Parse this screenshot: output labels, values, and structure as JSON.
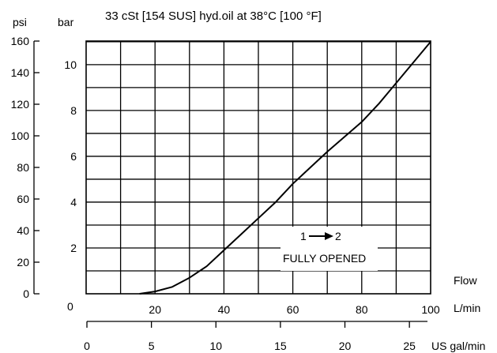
{
  "chart_data": {
    "type": "line",
    "title": "33 cSt [154 SUS] hyd.oil at 38°C [100 °F]",
    "left_axes": {
      "psi": {
        "label": "psi",
        "range": [
          0,
          160
        ],
        "ticks": [
          0,
          20,
          40,
          60,
          80,
          100,
          120,
          140,
          160
        ]
      },
      "bar": {
        "label": "bar",
        "range": [
          0,
          11.03
        ],
        "ticks": [
          2,
          4,
          6,
          8,
          10
        ]
      }
    },
    "x_axes": {
      "lpm": {
        "label_line1": "Flow",
        "label_line2": "L/min",
        "range": [
          0,
          100
        ],
        "ticks": [
          0,
          20,
          40,
          60,
          80,
          100
        ],
        "first_tick_label": "0"
      },
      "gpm": {
        "label": "US gal/min",
        "range": [
          0,
          26.4
        ],
        "ticks": [
          0,
          5,
          10,
          15,
          20,
          25
        ]
      }
    },
    "grid": true,
    "series": [
      {
        "x_unit": "L/min",
        "y_unit": "bar",
        "x": [
          15.5,
          20,
          25,
          30,
          35,
          40,
          45,
          50,
          55,
          60,
          65,
          70,
          75,
          80,
          85,
          90,
          95,
          100
        ],
        "y": [
          0,
          0.1,
          0.3,
          0.7,
          1.2,
          1.9,
          2.6,
          3.3,
          4.0,
          4.8,
          5.5,
          6.2,
          6.85,
          7.5,
          8.3,
          9.2,
          10.1,
          11.0
        ]
      }
    ],
    "annotation": {
      "flow": "1",
      "to": "2",
      "state": "FULLY OPENED"
    }
  }
}
